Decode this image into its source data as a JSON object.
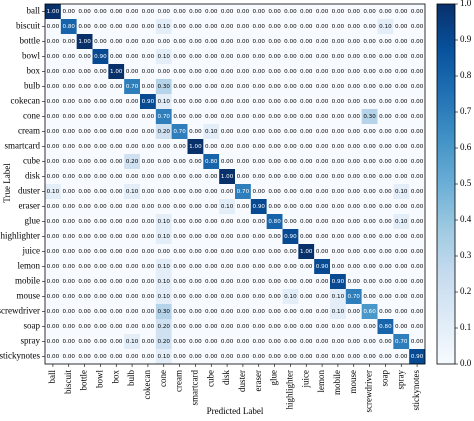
{
  "chart_data": {
    "type": "heatmap",
    "x_label": "Predicted Label",
    "y_label": "True Label",
    "x_categories": [
      "ball",
      "biscuit",
      "bottle",
      "bowl",
      "box",
      "bulb",
      "cokecan",
      "cone",
      "cream",
      "smartcard",
      "cube",
      "disk",
      "duster",
      "eraser",
      "glue",
      "highlighter",
      "juice",
      "lemon",
      "mobile",
      "mouse",
      "screwdriver",
      "soap",
      "spray",
      "stickynotes"
    ],
    "y_categories": [
      "ball",
      "biscuit",
      "bottle",
      "bowl",
      "box",
      "bulb",
      "cokecan",
      "cone",
      "cream",
      "smartcard",
      "cube",
      "disk",
      "duster",
      "eraser",
      "glue",
      "highlighter",
      "juice",
      "lemon",
      "mobile",
      "mouse",
      "screwdriver",
      "soap",
      "spray",
      "stickynotes"
    ],
    "values": [
      [
        1,
        0,
        0,
        0,
        0,
        0,
        0,
        0,
        0,
        0,
        0,
        0,
        0,
        0,
        0,
        0,
        0,
        0,
        0,
        0,
        0,
        0,
        0,
        0
      ],
      [
        0,
        0.8,
        0,
        0,
        0,
        0,
        0,
        0.1,
        0,
        0,
        0,
        0,
        0,
        0,
        0,
        0,
        0,
        0,
        0,
        0,
        0,
        0.1,
        0,
        0
      ],
      [
        0,
        0,
        1,
        0,
        0,
        0,
        0,
        0,
        0,
        0,
        0,
        0,
        0,
        0,
        0,
        0,
        0,
        0,
        0,
        0,
        0,
        0,
        0,
        0
      ],
      [
        0,
        0,
        0,
        0.9,
        0,
        0,
        0,
        0.1,
        0,
        0,
        0,
        0,
        0,
        0,
        0,
        0,
        0,
        0,
        0,
        0,
        0,
        0,
        0,
        0
      ],
      [
        0,
        0,
        0,
        0,
        1,
        0,
        0,
        0,
        0,
        0,
        0,
        0,
        0,
        0,
        0,
        0,
        0,
        0,
        0,
        0,
        0,
        0,
        0,
        0
      ],
      [
        0,
        0,
        0,
        0,
        0,
        0.7,
        0,
        0.3,
        0,
        0,
        0,
        0,
        0,
        0,
        0,
        0,
        0,
        0,
        0,
        0,
        0,
        0,
        0,
        0
      ],
      [
        0,
        0,
        0,
        0,
        0,
        0,
        0.9,
        0.1,
        0,
        0,
        0,
        0,
        0,
        0,
        0,
        0,
        0,
        0,
        0,
        0,
        0,
        0,
        0,
        0
      ],
      [
        0,
        0,
        0,
        0,
        0,
        0,
        0,
        0.7,
        0,
        0,
        0,
        0,
        0,
        0,
        0,
        0,
        0,
        0,
        0,
        0,
        0.3,
        0,
        0,
        0
      ],
      [
        0,
        0,
        0,
        0,
        0,
        0,
        0,
        0.2,
        0.7,
        0,
        0.1,
        0,
        0,
        0,
        0,
        0,
        0,
        0,
        0,
        0,
        0,
        0,
        0,
        0
      ],
      [
        0,
        0,
        0,
        0,
        0,
        0,
        0,
        0,
        0,
        1,
        0,
        0,
        0,
        0,
        0,
        0,
        0,
        0,
        0,
        0,
        0,
        0,
        0,
        0
      ],
      [
        0,
        0,
        0,
        0,
        0,
        0.2,
        0,
        0,
        0,
        0,
        0.8,
        0,
        0,
        0,
        0,
        0,
        0,
        0,
        0,
        0,
        0,
        0,
        0,
        0
      ],
      [
        0,
        0,
        0,
        0,
        0,
        0,
        0,
        0,
        0,
        0,
        0,
        1,
        0,
        0,
        0,
        0,
        0,
        0,
        0,
        0,
        0,
        0,
        0,
        0
      ],
      [
        0.1,
        0,
        0,
        0,
        0,
        0.1,
        0,
        0,
        0,
        0,
        0,
        0,
        0.7,
        0,
        0,
        0,
        0,
        0,
        0,
        0,
        0,
        0,
        0.1,
        0
      ],
      [
        0,
        0,
        0,
        0,
        0,
        0,
        0,
        0,
        0,
        0,
        0,
        0.1,
        0,
        0.9,
        0,
        0,
        0,
        0,
        0,
        0,
        0,
        0,
        0,
        0
      ],
      [
        0,
        0,
        0,
        0,
        0,
        0,
        0,
        0.1,
        0,
        0,
        0,
        0,
        0,
        0,
        0.8,
        0,
        0,
        0,
        0,
        0,
        0,
        0,
        0.1,
        0
      ],
      [
        0,
        0,
        0,
        0,
        0,
        0,
        0,
        0.1,
        0,
        0,
        0,
        0,
        0,
        0,
        0,
        0.9,
        0,
        0,
        0,
        0,
        0,
        0,
        0,
        0
      ],
      [
        0,
        0,
        0,
        0,
        0,
        0,
        0,
        0,
        0,
        0,
        0,
        0,
        0,
        0,
        0,
        0,
        1,
        0,
        0,
        0,
        0,
        0,
        0,
        0
      ],
      [
        0,
        0,
        0,
        0,
        0,
        0,
        0,
        0.1,
        0,
        0,
        0,
        0,
        0,
        0,
        0,
        0,
        0,
        0.9,
        0,
        0,
        0,
        0,
        0,
        0
      ],
      [
        0,
        0,
        0,
        0,
        0,
        0,
        0,
        0.1,
        0,
        0,
        0,
        0,
        0,
        0,
        0,
        0,
        0,
        0,
        0.9,
        0,
        0,
        0,
        0,
        0
      ],
      [
        0,
        0,
        0,
        0,
        0,
        0,
        0,
        0.1,
        0,
        0,
        0,
        0,
        0,
        0,
        0,
        0.1,
        0,
        0,
        0.1,
        0.7,
        0,
        0,
        0,
        0
      ],
      [
        0,
        0,
        0,
        0,
        0,
        0,
        0,
        0.3,
        0,
        0,
        0,
        0,
        0,
        0,
        0,
        0,
        0,
        0,
        0.1,
        0,
        0.6,
        0,
        0,
        0
      ],
      [
        0,
        0,
        0,
        0,
        0,
        0,
        0,
        0.2,
        0,
        0,
        0,
        0,
        0,
        0,
        0,
        0,
        0,
        0,
        0,
        0,
        0,
        0.8,
        0,
        0
      ],
      [
        0,
        0,
        0,
        0,
        0,
        0.1,
        0,
        0.2,
        0,
        0,
        0,
        0,
        0,
        0,
        0,
        0,
        0,
        0,
        0,
        0,
        0,
        0,
        0.7,
        0
      ],
      [
        0,
        0,
        0,
        0,
        0,
        0,
        0,
        0.1,
        0,
        0,
        0,
        0,
        0,
        0,
        0,
        0,
        0,
        0,
        0,
        0,
        0,
        0,
        0,
        0.9
      ]
    ],
    "value_labels": [
      [
        "1.00",
        "0.00",
        "0.00",
        "0.00",
        "0.00",
        "0.00",
        "0.00",
        "0.00",
        "0.00",
        "0.00",
        "0.00",
        "0.00",
        "0.00",
        "0.00",
        "0.00",
        "0.00",
        "0.00",
        "0.00",
        "0.00",
        "0.00",
        "0.00",
        "0.00",
        "0.00",
        "0.00"
      ],
      [
        "0.00",
        "0.80",
        "0.00",
        "0.00",
        "0.00",
        "0.00",
        "0.00",
        "0.10",
        "0.00",
        "0.00",
        "0.00",
        "0.00",
        "0.00",
        "0.00",
        "0.00",
        "0.00",
        "0.00",
        "0.00",
        "0.00",
        "0.00",
        "0.00",
        "0.10",
        "0.00",
        "0.00"
      ],
      [
        "0.00",
        "0.00",
        "1.00",
        "0.00",
        "0.00",
        "0.00",
        "0.00",
        "0.00",
        "0.00",
        "0.00",
        "0.00",
        "0.00",
        "0.00",
        "0.00",
        "0.00",
        "0.00",
        "0.00",
        "0.00",
        "0.00",
        "0.00",
        "0.00",
        "0.00",
        "0.00",
        "0.00"
      ],
      [
        "0.00",
        "0.00",
        "0.00",
        "0.90",
        "0.00",
        "0.00",
        "0.00",
        "0.10",
        "0.00",
        "0.00",
        "0.00",
        "0.00",
        "0.00",
        "0.00",
        "0.00",
        "0.00",
        "0.00",
        "0.00",
        "0.00",
        "0.00",
        "0.00",
        "0.00",
        "0.00",
        "0.00"
      ],
      [
        "0.00",
        "0.00",
        "0.00",
        "0.00",
        "1.00",
        "0.00",
        "0.00",
        "0.00",
        "0.00",
        "0.00",
        "0.00",
        "0.00",
        "0.00",
        "0.00",
        "0.00",
        "0.00",
        "0.00",
        "0.00",
        "0.00",
        "0.00",
        "0.00",
        "0.00",
        "0.00",
        "0.00"
      ],
      [
        "0.00",
        "0.00",
        "0.00",
        "0.00",
        "0.00",
        "0.70",
        "0.00",
        "0.30",
        "0.00",
        "0.00",
        "0.00",
        "0.00",
        "0.00",
        "0.00",
        "0.00",
        "0.00",
        "0.00",
        "0.00",
        "0.00",
        "0.00",
        "0.00",
        "0.00",
        "0.00",
        "0.00"
      ],
      [
        "0.00",
        "0.00",
        "0.00",
        "0.00",
        "0.00",
        "0.00",
        "0.90",
        "0.10",
        "0.00",
        "0.00",
        "0.00",
        "0.00",
        "0.00",
        "0.00",
        "0.00",
        "0.00",
        "0.00",
        "0.00",
        "0.00",
        "0.00",
        "0.00",
        "0.00",
        "0.00",
        "0.00"
      ],
      [
        "0.00",
        "0.00",
        "0.00",
        "0.00",
        "0.00",
        "0.00",
        "0.00",
        "0.70",
        "0.00",
        "0.00",
        "0.00",
        "0.00",
        "0.00",
        "0.00",
        "0.00",
        "0.00",
        "0.00",
        "0.00",
        "0.00",
        "0.00",
        "0.30",
        "0.00",
        "0.00",
        "0.00"
      ],
      [
        "0.00",
        "0.00",
        "0.00",
        "0.00",
        "0.00",
        "0.00",
        "0.00",
        "0.20",
        "0.70",
        "0.00",
        "0.10",
        "0.00",
        "0.00",
        "0.00",
        "0.00",
        "0.00",
        "0.00",
        "0.00",
        "0.00",
        "0.00",
        "0.00",
        "0.00",
        "0.00",
        "0.00"
      ],
      [
        "0.00",
        "0.00",
        "0.00",
        "0.00",
        "0.00",
        "0.00",
        "0.00",
        "0.00",
        "0.00",
        "1.00",
        "0.00",
        "0.00",
        "0.00",
        "0.00",
        "0.00",
        "0.00",
        "0.00",
        "0.00",
        "0.00",
        "0.00",
        "0.00",
        "0.00",
        "0.00",
        "0.00"
      ],
      [
        "0.00",
        "0.00",
        "0.00",
        "0.00",
        "0.00",
        "0.20",
        "0.00",
        "0.00",
        "0.00",
        "0.00",
        "0.80",
        "0.00",
        "0.00",
        "0.00",
        "0.00",
        "0.00",
        "0.00",
        "0.00",
        "0.00",
        "0.00",
        "0.00",
        "0.00",
        "0.00",
        "0.00"
      ],
      [
        "0.00",
        "0.00",
        "0.00",
        "0.00",
        "0.00",
        "0.00",
        "0.00",
        "0.00",
        "0.00",
        "0.00",
        "0.00",
        "1.00",
        "0.00",
        "0.00",
        "0.00",
        "0.00",
        "0.00",
        "0.00",
        "0.00",
        "0.00",
        "0.00",
        "0.00",
        "0.00",
        "0.00"
      ],
      [
        "0.10",
        "0.00",
        "0.00",
        "0.00",
        "0.00",
        "0.10",
        "0.00",
        "0.00",
        "0.00",
        "0.00",
        "0.00",
        "0.00",
        "0.70",
        "0.00",
        "0.00",
        "0.00",
        "0.00",
        "0.00",
        "0.00",
        "0.00",
        "0.00",
        "0.00",
        "0.10",
        "0.00"
      ],
      [
        "0.00",
        "0.00",
        "0.00",
        "0.00",
        "0.00",
        "0.00",
        "0.00",
        "0.00",
        "0.00",
        "0.00",
        "0.00",
        "0.10",
        "0.00",
        "0.90",
        "0.00",
        "0.00",
        "0.00",
        "0.00",
        "0.00",
        "0.00",
        "0.00",
        "0.00",
        "0.00",
        "0.00"
      ],
      [
        "0.00",
        "0.00",
        "0.00",
        "0.00",
        "0.00",
        "0.00",
        "0.00",
        "0.10",
        "0.00",
        "0.00",
        "0.00",
        "0.00",
        "0.00",
        "0.00",
        "0.80",
        "0.00",
        "0.00",
        "0.00",
        "0.00",
        "0.00",
        "0.00",
        "0.00",
        "0.10",
        "0.00"
      ],
      [
        "0.00",
        "0.00",
        "0.00",
        "0.00",
        "0.00",
        "0.00",
        "0.00",
        "0.10",
        "0.00",
        "0.00",
        "0.00",
        "0.00",
        "0.00",
        "0.00",
        "0.00",
        "0.90",
        "0.00",
        "0.00",
        "0.00",
        "0.00",
        "0.00",
        "0.00",
        "0.00",
        "0.00"
      ],
      [
        "0.00",
        "0.00",
        "0.00",
        "0.00",
        "0.00",
        "0.00",
        "0.00",
        "0.00",
        "0.00",
        "0.00",
        "0.00",
        "0.00",
        "0.00",
        "0.00",
        "0.00",
        "0.00",
        "1.00",
        "0.00",
        "0.00",
        "0.00",
        "0.00",
        "0.00",
        "0.00",
        "0.00"
      ],
      [
        "0.00",
        "0.00",
        "0.00",
        "0.00",
        "0.00",
        "0.00",
        "0.00",
        "0.10",
        "0.00",
        "0.00",
        "0.00",
        "0.00",
        "0.00",
        "0.00",
        "0.00",
        "0.00",
        "0.00",
        "0.90",
        "0.00",
        "0.00",
        "0.00",
        "0.00",
        "0.00",
        "0.00"
      ],
      [
        "0.00",
        "0.00",
        "0.00",
        "0.00",
        "0.00",
        "0.00",
        "0.00",
        "0.10",
        "0.00",
        "0.00",
        "0.00",
        "0.00",
        "0.00",
        "0.00",
        "0.00",
        "0.00",
        "0.00",
        "0.00",
        "0.90",
        "0.00",
        "0.00",
        "0.00",
        "0.00",
        "0.00"
      ],
      [
        "0.00",
        "0.00",
        "0.00",
        "0.00",
        "0.00",
        "0.00",
        "0.00",
        "0.10",
        "0.00",
        "0.00",
        "0.00",
        "0.00",
        "0.00",
        "0.00",
        "0.00",
        "0.10",
        "0.00",
        "0.00",
        "0.10",
        "0.70",
        "0.00",
        "0.00",
        "0.00",
        "0.00"
      ],
      [
        "0.00",
        "0.00",
        "0.00",
        "0.00",
        "0.00",
        "0.00",
        "0.00",
        "0.30",
        "0.00",
        "0.00",
        "0.00",
        "0.00",
        "0.00",
        "0.00",
        "0.00",
        "0.00",
        "0.00",
        "0.00",
        "0.10",
        "0.00",
        "0.60",
        "0.00",
        "0.00",
        "0.00"
      ],
      [
        "0.00",
        "0.00",
        "0.00",
        "0.00",
        "0.00",
        "0.00",
        "0.00",
        "0.20",
        "0.00",
        "0.00",
        "0.00",
        "0.00",
        "0.00",
        "0.00",
        "0.00",
        "0.00",
        "0.00",
        "0.00",
        "0.00",
        "0.00",
        "0.00",
        "0.80",
        "0.00",
        "0.00"
      ],
      [
        "0.00",
        "0.00",
        "0.00",
        "0.00",
        "0.00",
        "0.10",
        "0.00",
        "0.20",
        "0.00",
        "0.00",
        "0.00",
        "0.00",
        "0.00",
        "0.00",
        "0.00",
        "0.00",
        "0.00",
        "0.00",
        "0.00",
        "0.00",
        "0.00",
        "0.00",
        "0.70",
        "0.00"
      ],
      [
        "0.00",
        "0.00",
        "0.00",
        "0.00",
        "0.00",
        "0.00",
        "0.00",
        "0.10",
        "0.00",
        "0.00",
        "0.00",
        "0.00",
        "0.00",
        "0.00",
        "0.00",
        "0.00",
        "0.00",
        "0.00",
        "0.00",
        "0.00",
        "0.00",
        "0.00",
        "0.00",
        "0.90"
      ]
    ],
    "colorscale": [
      "#f7fbff",
      "#deebf7",
      "#c6dbef",
      "#9ecae1",
      "#6baed6",
      "#4292c6",
      "#2171b5",
      "#08519c",
      "#08306b"
    ],
    "clim": [
      0,
      1
    ],
    "cticks": [
      {
        "value": 0,
        "label": "0.0"
      },
      0.1,
      0.2,
      0.3,
      0.4,
      0.5,
      0.6,
      0.7,
      0.8,
      0.9,
      {
        "value": 1,
        "label": "1.0"
      }
    ]
  }
}
